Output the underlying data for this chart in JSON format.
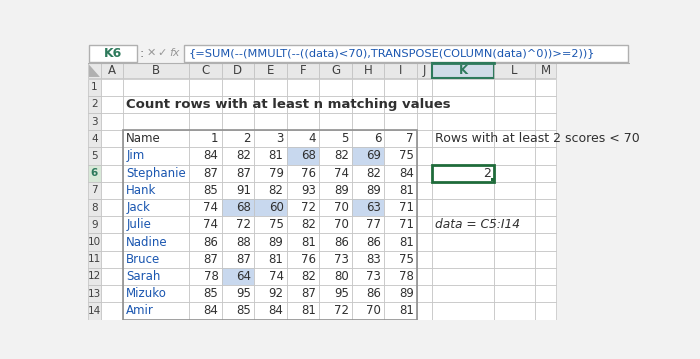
{
  "formula_bar_cell": "K6",
  "formula_bar_text": "{=SUM(--(MMULT(--((data)<70),TRANSPOSE(COLUMN(data)^0))>=2))}",
  "title": "Count rows with at least n matching values",
  "col_headers": [
    "A",
    "B",
    "C",
    "D",
    "E",
    "F",
    "G",
    "H",
    "I",
    "J",
    "K",
    "L",
    "M"
  ],
  "row_headers": [
    "1",
    "2",
    "3",
    "4",
    "5",
    "6",
    "7",
    "8",
    "9",
    "10",
    "11",
    "12",
    "13",
    "14"
  ],
  "names": [
    "Jim",
    "Stephanie",
    "Hank",
    "Jack",
    "Julie",
    "Nadine",
    "Bruce",
    "Sarah",
    "Mizuko",
    "Amir"
  ],
  "data": [
    [
      84,
      82,
      81,
      68,
      82,
      69,
      75
    ],
    [
      87,
      87,
      79,
      76,
      74,
      82,
      84
    ],
    [
      85,
      91,
      82,
      93,
      89,
      89,
      81
    ],
    [
      74,
      68,
      60,
      72,
      70,
      63,
      71
    ],
    [
      74,
      72,
      75,
      82,
      70,
      77,
      71
    ],
    [
      86,
      88,
      89,
      81,
      86,
      86,
      81
    ],
    [
      87,
      87,
      81,
      76,
      73,
      83,
      75
    ],
    [
      78,
      64,
      74,
      82,
      80,
      73,
      78
    ],
    [
      85,
      95,
      92,
      87,
      95,
      86,
      89
    ],
    [
      84,
      85,
      84,
      81,
      72,
      70,
      81
    ]
  ],
  "highlight_color": "#c8d8ee",
  "result_value": "2",
  "right_label": "Rows with at least 2 scores < 70",
  "data_label": "data = C5:I14",
  "bg_color": "#f2f2f2",
  "cell_bg": "#ffffff",
  "grid_color": "#c0c0c0",
  "header_bg": "#e8e8e8",
  "k_header_bg": "#d0dce8",
  "k_header_fg": "#2e7a5c",
  "k_header_border": "#2e7a5c",
  "result_border_color": "#1f6b3a",
  "name_color": "#1a56b0",
  "formula_text_color": "#1a56b0",
  "row6_header_bg": "#d8e8d8",
  "formula_bar_bg": "#f2f2f2",
  "formula_cell_bg": "#ffffff"
}
